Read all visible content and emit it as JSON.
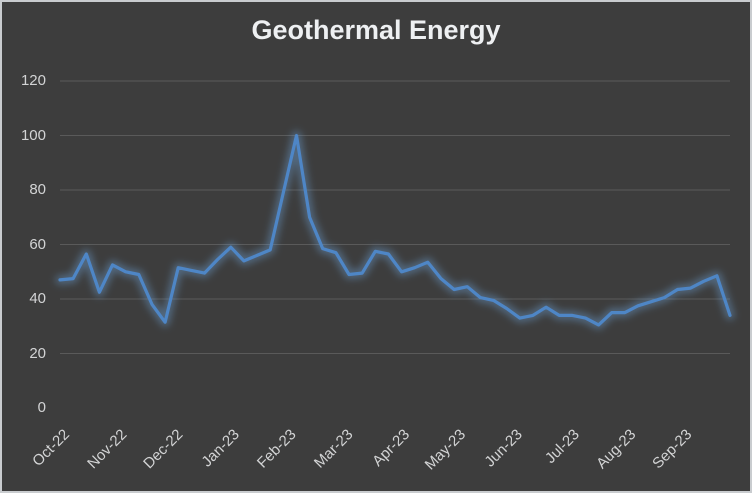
{
  "window": {
    "background_color": "#3d3d3d",
    "border_color": "#c9cccf"
  },
  "chart_data": {
    "type": "line",
    "title": "Geothermal Energy",
    "title_color": "#eef0f2",
    "xlabel": "",
    "ylabel": "",
    "ylim": [
      0,
      120
    ],
    "yticks": [
      0,
      20,
      40,
      60,
      80,
      100,
      120
    ],
    "grid": true,
    "gridline_color": "#5a5a5a",
    "axis_label_color": "#d3d4d5",
    "x_tick_labels": [
      "Oct-22",
      "Nov-22",
      "Dec-22",
      "Jan-23",
      "Feb-23",
      "Mar-23",
      "Apr-23",
      "May-23",
      "Jun-23",
      "Jul-23",
      "Aug-23",
      "Sep-23"
    ],
    "x_tick_label_rotation_deg": 45,
    "legend": "none",
    "series": [
      {
        "name": "Geothermal Energy",
        "color": "#4e86c6",
        "glow_color": "#6ea6dd",
        "frequency": "weekly",
        "values": [
          47,
          47.5,
          56.5,
          42.5,
          52.5,
          50,
          49,
          38,
          31.5,
          51.5,
          50.5,
          49.5,
          54.5,
          59,
          54,
          56,
          58,
          79,
          100,
          70,
          58.5,
          57,
          49,
          49.5,
          57.5,
          56.5,
          50,
          51.5,
          53.5,
          47.5,
          43.5,
          44.5,
          40.5,
          39.5,
          36.5,
          33,
          34,
          37,
          34,
          34,
          33,
          30.5,
          35,
          35,
          37.5,
          39,
          40.5,
          43.5,
          44,
          46.5,
          48.5,
          34
        ]
      }
    ]
  }
}
